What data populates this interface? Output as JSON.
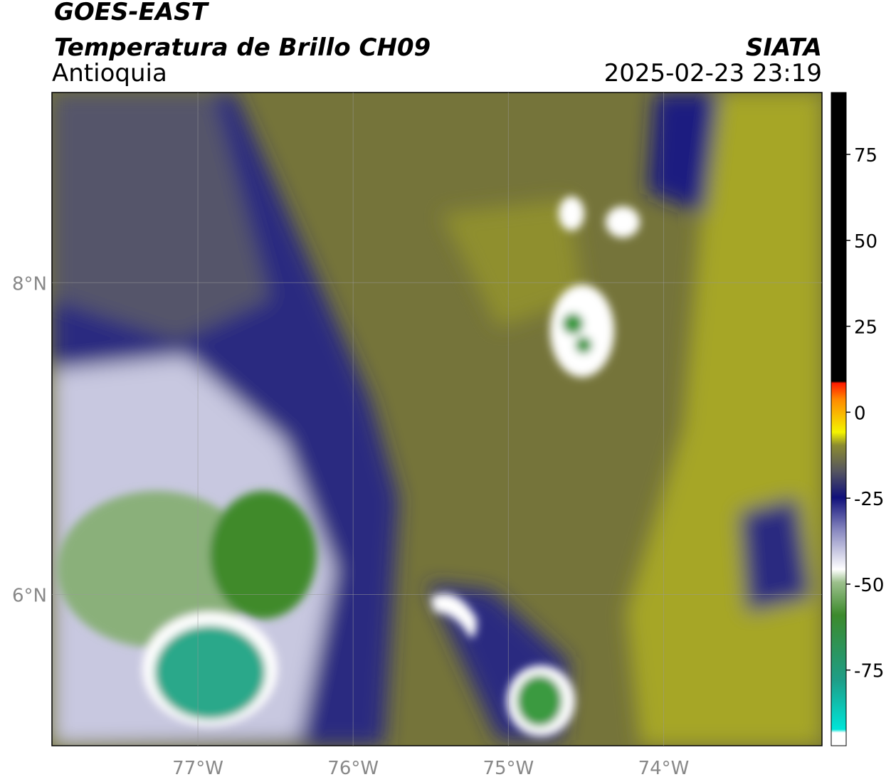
{
  "header": {
    "title": "GOES-EAST",
    "subtitle": "Temperatura de Brillo CH09",
    "region": "Antioquia",
    "source": "SIATA",
    "datetime": "2025-02-23 23:19"
  },
  "map": {
    "xlim": [
      -77.94,
      -72.98
    ],
    "ylim": [
      5.03,
      9.22
    ],
    "xticks": [
      {
        "value": -77,
        "label": "77°W"
      },
      {
        "value": -76,
        "label": "76°W"
      },
      {
        "value": -75,
        "label": "75°W"
      },
      {
        "value": -74,
        "label": "74°W"
      }
    ],
    "yticks": [
      {
        "value": 6,
        "label": "6°N"
      },
      {
        "value": 8,
        "label": "8°N"
      }
    ]
  },
  "colorbar": {
    "lim": [
      -97,
      93
    ],
    "ticks": [
      75,
      50,
      25,
      0,
      -25,
      -50,
      -75
    ]
  }
}
